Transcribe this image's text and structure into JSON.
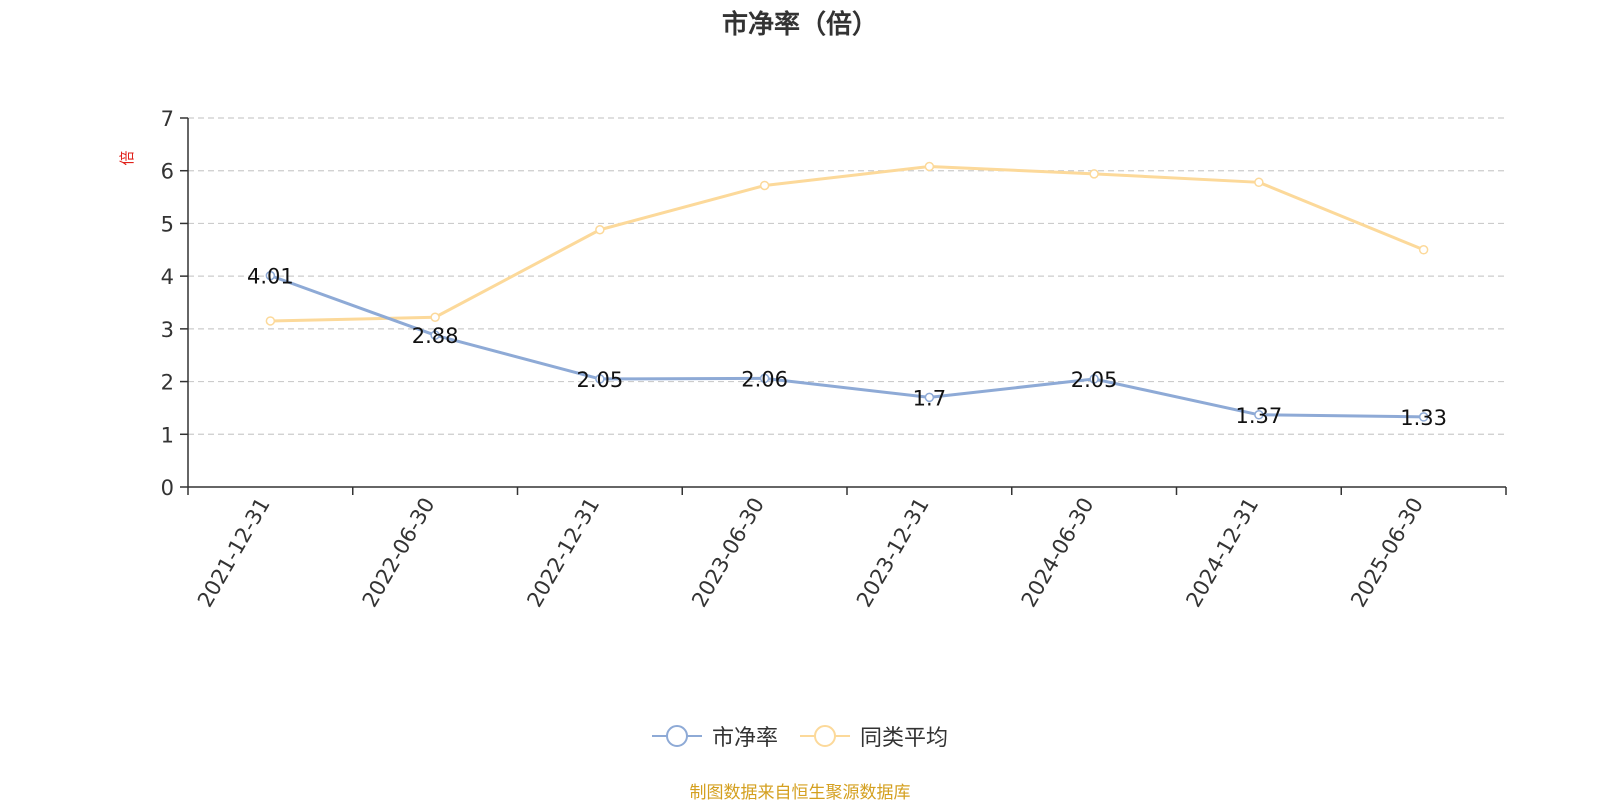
{
  "title": "市净率（倍）",
  "source_note": "制图数据来自恒生聚源数据库",
  "colors": {
    "series_pb": "#8eaad6",
    "series_avg": "#fcd99a",
    "unit_label": "#e0201a",
    "source_note": "#d4a020",
    "axis": "#333333",
    "grid": "#cccccc"
  },
  "chart_data": {
    "type": "line",
    "title": "市净率（倍）",
    "ylabel": "倍",
    "xlabel": "",
    "ylim": [
      0,
      7
    ],
    "yticks": [
      0,
      1,
      2,
      3,
      4,
      5,
      6,
      7
    ],
    "grid": true,
    "legend_position": "bottom",
    "x": [
      "2021-12-31",
      "2022-06-30",
      "2022-12-31",
      "2023-06-30",
      "2023-12-31",
      "2024-06-30",
      "2024-12-31",
      "2025-06-30"
    ],
    "series": [
      {
        "name": "市净率",
        "values": [
          4.01,
          2.88,
          2.05,
          2.06,
          1.7,
          2.05,
          1.37,
          1.33
        ],
        "labels": [
          "4.01",
          "2.88",
          "2.05",
          "2.06",
          "1.7",
          "2.05",
          "1.37",
          "1.33"
        ]
      },
      {
        "name": "同类平均",
        "values": [
          3.15,
          3.22,
          4.88,
          5.72,
          6.08,
          5.94,
          5.78,
          4.5
        ]
      }
    ]
  }
}
